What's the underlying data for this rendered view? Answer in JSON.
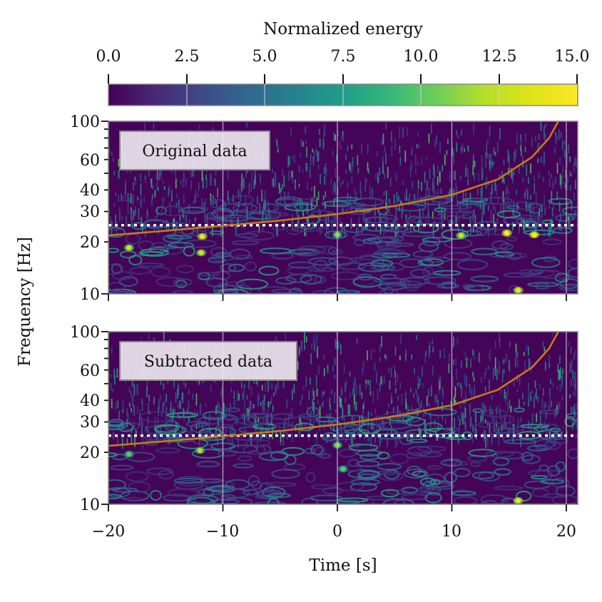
{
  "chart_data": {
    "type": "heatmap",
    "colorbar": {
      "label": "Normalized energy",
      "range": [
        0,
        15
      ],
      "ticks": [
        "0.0",
        "2.5",
        "5.0",
        "7.5",
        "10.0",
        "12.5",
        "15.0"
      ],
      "colormap": "viridis",
      "placement": "top"
    },
    "x_axis": {
      "label": "Time [s]",
      "range": [
        -20,
        21
      ],
      "ticks": [
        -20,
        -10,
        0,
        10,
        20
      ],
      "tick_labels": [
        "−20",
        "−10",
        "0",
        "10",
        "20"
      ]
    },
    "y_axis": {
      "label": "Frequency [Hz]",
      "scale": "log",
      "range": [
        10,
        100
      ],
      "ticks": [
        10,
        20,
        30,
        40,
        60,
        100
      ],
      "tick_labels": [
        "10",
        "20",
        "30",
        "40",
        "60",
        "100"
      ]
    },
    "grid": true,
    "grid_x_values": [
      -10,
      0,
      10,
      20
    ],
    "dotted_line_frequency_hz": 25,
    "track_color": "#c77b16",
    "track_points": [
      [
        -20,
        21.8
      ],
      [
        -15,
        23.2
      ],
      [
        -10,
        24.8
      ],
      [
        -5,
        26.6
      ],
      [
        0,
        29
      ],
      [
        5,
        32.3
      ],
      [
        10,
        37.5
      ],
      [
        14,
        46
      ],
      [
        17,
        62
      ],
      [
        18.5,
        80
      ],
      [
        19.3,
        100
      ]
    ],
    "panels": [
      {
        "label": "Original data",
        "hot_spots": [
          {
            "t": -18.2,
            "f": 18.5,
            "level": 13
          },
          {
            "t": -11.8,
            "f": 21.5,
            "level": 14
          },
          {
            "t": -11.9,
            "f": 17.3,
            "level": 13
          },
          {
            "t": 0,
            "f": 22,
            "level": 11
          },
          {
            "t": 10.8,
            "f": 21.8,
            "level": 13
          },
          {
            "t": 14.8,
            "f": 22.5,
            "level": 15
          },
          {
            "t": 17.2,
            "f": 22,
            "level": 15
          },
          {
            "t": 15.8,
            "f": 10.5,
            "level": 14
          }
        ]
      },
      {
        "label": "Subtracted data",
        "hot_spots": [
          {
            "t": -18.2,
            "f": 19.5,
            "level": 10
          },
          {
            "t": -12,
            "f": 20.5,
            "level": 12
          },
          {
            "t": 0,
            "f": 22,
            "level": 11
          },
          {
            "t": 0.5,
            "f": 16,
            "level": 10
          },
          {
            "t": 15.8,
            "f": 10.5,
            "level": 14
          }
        ]
      }
    ]
  }
}
